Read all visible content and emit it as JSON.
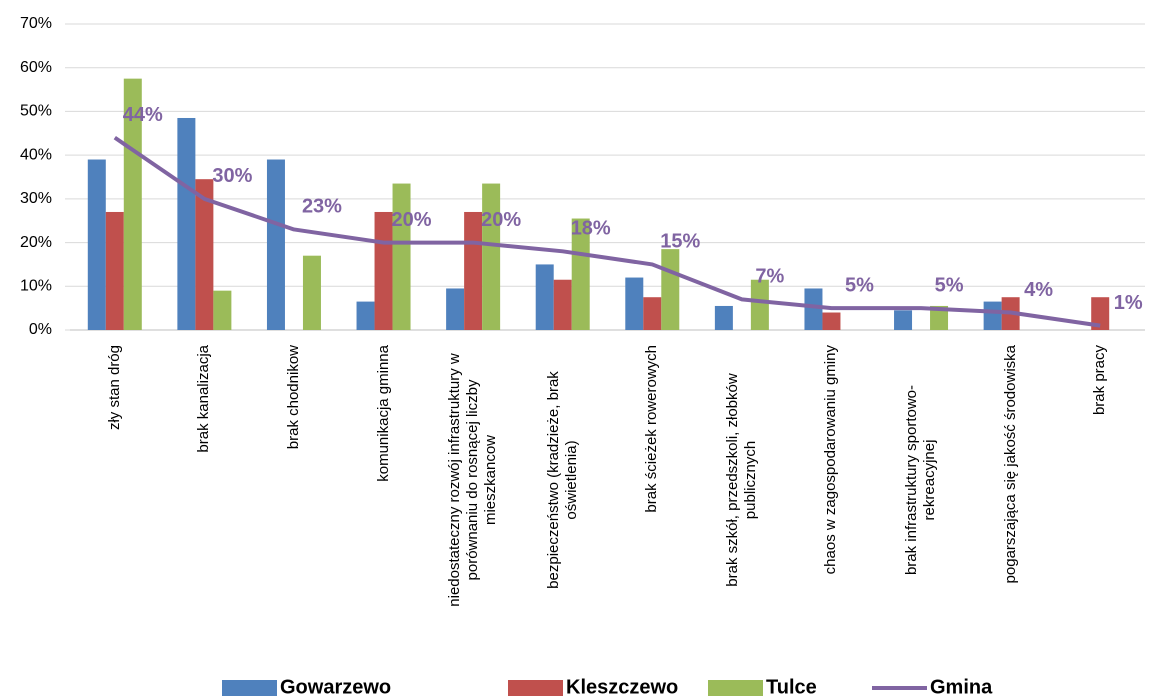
{
  "chart_data": {
    "type": "bar_line",
    "categories": [
      "zły stan dróg",
      "brak kanalizacja",
      "brak chodnikow",
      "komunikacja gminna",
      "niedostateczny rozwój infrastruktury w porównaniu do rosnącej liczby mieszkancow",
      "bezpieczeństwo (kradzieże, brak oświetlenia)",
      "brak ścieżek rowerowych",
      "brak szkół, przedszkoli, złobków publicznych",
      "chaos w zagospodarowaniu gminy",
      "brak infrastruktury sportowo-rekreacyjnej",
      "pogarszająca się jakość środowiska",
      "brak pracy"
    ],
    "series": [
      {
        "name": "Gowarzewo",
        "type": "bar",
        "color": "#4f81bd",
        "values": [
          39,
          48.5,
          39,
          6.5,
          9.5,
          15,
          12,
          5.5,
          9.5,
          4.5,
          6.5,
          0
        ]
      },
      {
        "name": "Kleszczewo",
        "type": "bar",
        "color": "#c0504d",
        "values": [
          27,
          34.5,
          0,
          27,
          27,
          11.5,
          7.5,
          0,
          4,
          0,
          7.5,
          7.5
        ]
      },
      {
        "name": "Tulce",
        "type": "bar",
        "color": "#9bbb59",
        "values": [
          57.5,
          9,
          17,
          33.5,
          33.5,
          25.5,
          18.5,
          11.5,
          0,
          5.5,
          0,
          0
        ]
      },
      {
        "name": "Gmina",
        "type": "line",
        "color": "#8064a2",
        "values": [
          44,
          30,
          23,
          20,
          20,
          18,
          15,
          7,
          5,
          5,
          4,
          1
        ],
        "value_labels": [
          "44%",
          "30%",
          "23%",
          "20%",
          "20%",
          "18%",
          "15%",
          "7%",
          "5%",
          "5%",
          "4%",
          "1%"
        ]
      }
    ],
    "ylim": [
      0,
      70
    ],
    "yticks": [
      {
        "value": 0,
        "label": "0%"
      },
      {
        "value": 10,
        "label": "10%"
      },
      {
        "value": 20,
        "label": "20%"
      },
      {
        "value": 30,
        "label": "30%"
      },
      {
        "value": 40,
        "label": "40%"
      },
      {
        "value": 50,
        "label": "50%"
      },
      {
        "value": 60,
        "label": "60%"
      },
      {
        "value": 70,
        "label": "70%"
      }
    ],
    "grid": true,
    "legend": "bottom"
  }
}
